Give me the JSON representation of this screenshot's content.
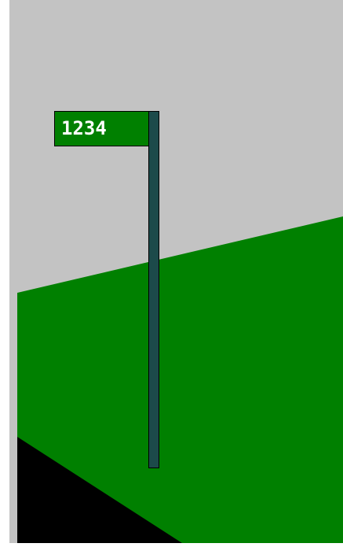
{
  "sign": {
    "label": "1234"
  }
}
